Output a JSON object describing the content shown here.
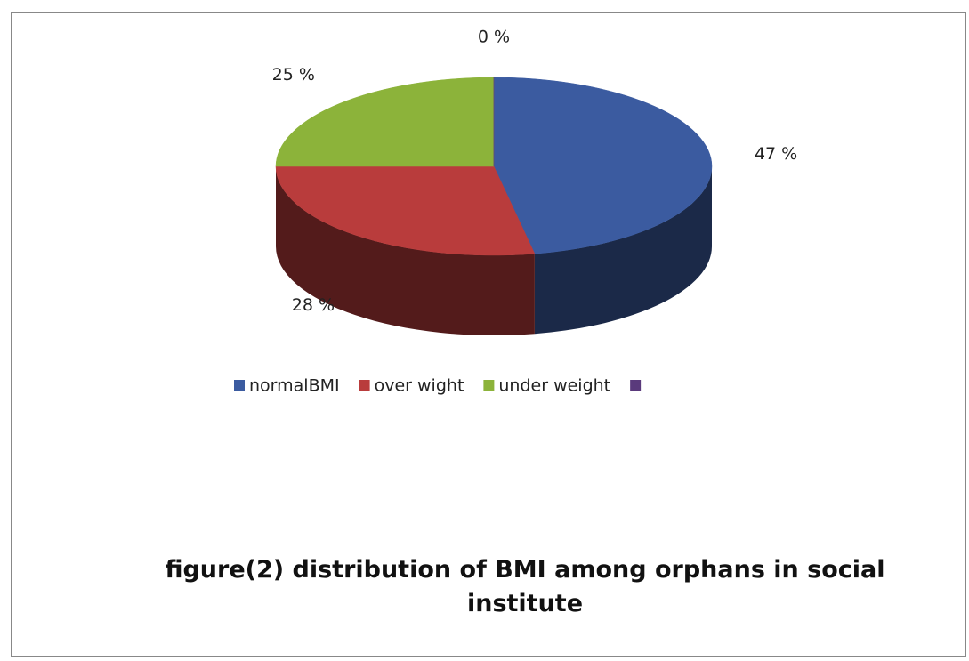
{
  "chart_data": {
    "type": "pie",
    "title": "figure(2) distribution of BMI among orphans in social institute",
    "categories": [
      "normalBMI",
      "over wight",
      "under weight",
      null
    ],
    "values": [
      47,
      28,
      25,
      0
    ],
    "value_labels": [
      "47 %",
      "28 %",
      "25 %",
      "0 %"
    ],
    "colors": [
      "#3b5ba0",
      "#b93c3c",
      "#8cb33a",
      "#5a3a7c"
    ],
    "legend": "bottom"
  }
}
